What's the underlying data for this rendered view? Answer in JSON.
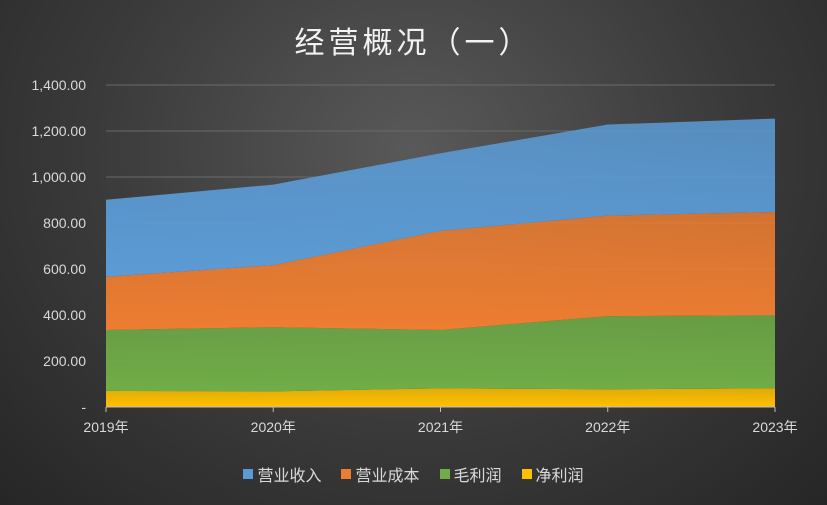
{
  "chart_data": {
    "type": "area",
    "stacked": true,
    "title": "经营概况（一）",
    "categories": [
      "2019年",
      "2020年",
      "2021年",
      "2022年",
      "2023年"
    ],
    "ylim": [
      0,
      1400
    ],
    "yticks": [
      "-",
      "200.00",
      "400.00",
      "600.00",
      "800.00",
      "1,000.00",
      "1,200.00",
      "1,400.00"
    ],
    "grid": true,
    "legend_position": "bottom",
    "series": [
      {
        "name": "营业收入",
        "color": "#5b9bd5",
        "values": [
          335,
          350,
          337,
          396,
          406
        ]
      },
      {
        "name": "营业成本",
        "color": "#ed7d31",
        "values": [
          231,
          270,
          431,
          437,
          449
        ]
      },
      {
        "name": "毛利润",
        "color": "#70ad47",
        "values": [
          265,
          279,
          254,
          318,
          318
        ]
      },
      {
        "name": "净利润",
        "color": "#ffc000",
        "values": [
          70,
          68,
          81,
          77,
          81
        ]
      }
    ]
  }
}
